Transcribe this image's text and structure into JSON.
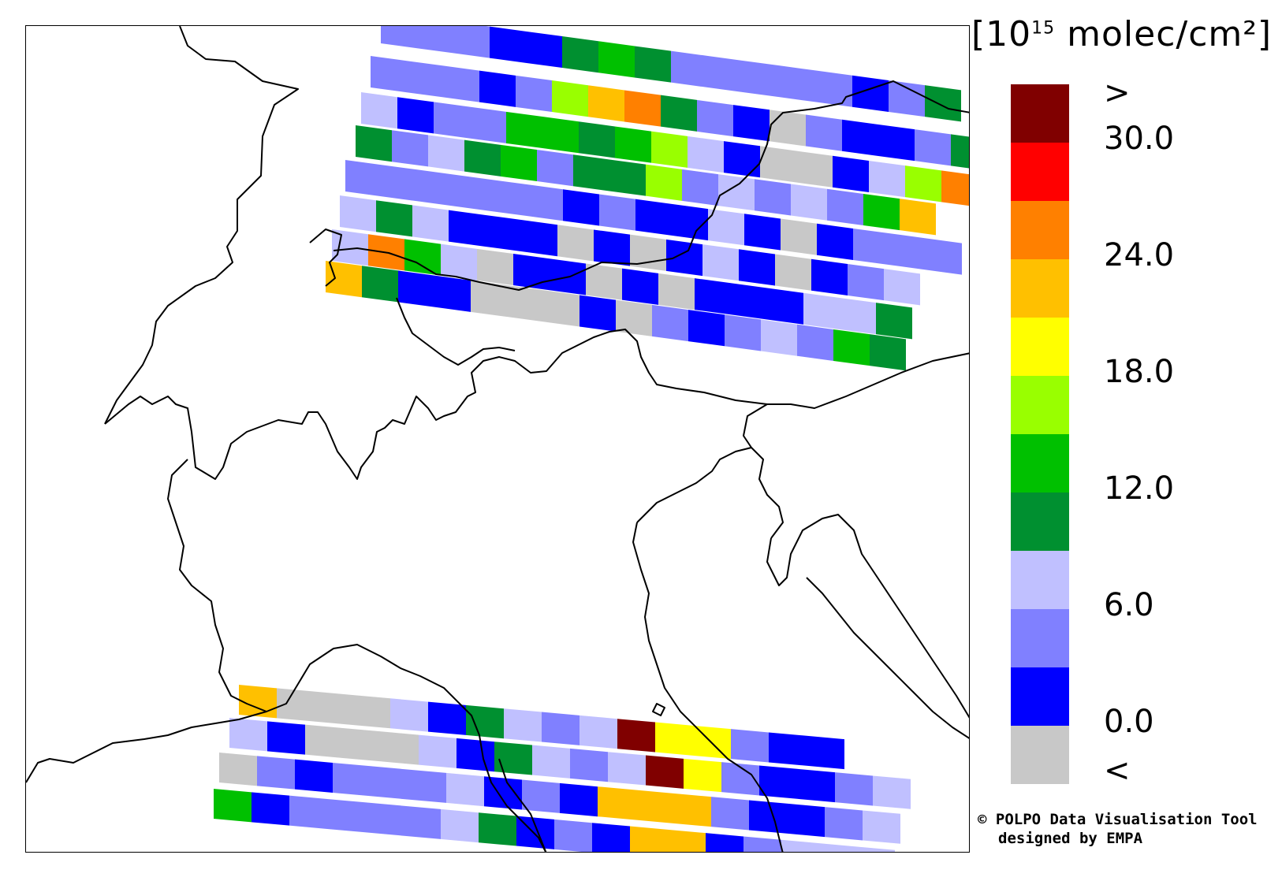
{
  "legend": {
    "unit_base": "[10",
    "unit_exp": "15",
    "unit_rest": " molec/cm²]",
    "bins": [
      {
        "color": "#800000",
        "label": ">"
      },
      {
        "color": "#ff0000",
        "label": "30.0"
      },
      {
        "color": "#ff8000",
        "label": ""
      },
      {
        "color": "#ffc000",
        "label": "24.0"
      },
      {
        "color": "#ffff00",
        "label": ""
      },
      {
        "color": "#99ff00",
        "label": "18.0"
      },
      {
        "color": "#00c000",
        "label": ""
      },
      {
        "color": "#009030",
        "label": "12.0"
      },
      {
        "color": "#c0c0ff",
        "label": ""
      },
      {
        "color": "#8080ff",
        "label": "6.0"
      },
      {
        "color": "#0000ff",
        "label": ""
      },
      {
        "color": "#c8c8c8",
        "label": "0.0"
      },
      {
        "color": "",
        "label": "<"
      }
    ]
  },
  "credit": {
    "line1": "© POLPO Data Visualisation Tool",
    "line2": "designed by EMPA"
  },
  "swaths": {
    "north": [
      [
        "lb",
        "lb",
        "lb",
        "b",
        "b",
        "dg",
        "g",
        "dg",
        "lb",
        "lb",
        "lb",
        "lb",
        "lb",
        "b",
        "lb",
        "dg"
      ],
      [
        "lb",
        "lb",
        "lb",
        "b",
        "lb",
        "yg",
        "o",
        "do",
        "dg",
        "lb",
        "b",
        "gr",
        "lb",
        "b",
        "b",
        "lb",
        "dg",
        "g"
      ],
      [
        "lv",
        "b",
        "lb",
        "lb",
        "g",
        "g",
        "dg",
        "g",
        "yg",
        "lv",
        "b",
        "gr",
        "gr",
        "b",
        "lv",
        "yg",
        "do"
      ],
      [
        "dg",
        "lb",
        "lv",
        "dg",
        "g",
        "lb",
        "dg",
        "dg",
        "yg",
        "lb",
        "lv",
        "lb",
        "lv",
        "lb",
        "g",
        "o"
      ],
      [
        "lb",
        "lb",
        "lb",
        "lb",
        "lb",
        "lb",
        "b",
        "lb",
        "b",
        "b",
        "lv",
        "b",
        "gr",
        "b",
        "lb",
        "lb",
        "lb"
      ],
      [
        "lv",
        "dg",
        "lv",
        "b",
        "b",
        "b",
        "gr",
        "b",
        "gr",
        "b",
        "lv",
        "b",
        "gr",
        "b",
        "lb",
        "lv"
      ],
      [
        "lv",
        "do",
        "g",
        "lv",
        "gr",
        "b",
        "b",
        "gr",
        "b",
        "gr",
        "b",
        "b",
        "b",
        "lv",
        "lv",
        "dg"
      ],
      [
        "o",
        "dg",
        "b",
        "b",
        "gr",
        "gr",
        "gr",
        "b",
        "gr",
        "lb",
        "b",
        "lb",
        "lv",
        "lb",
        "g",
        "dg"
      ],
      [
        "o",
        "dg",
        "b",
        "b",
        "gr",
        "gr",
        "gr",
        "b",
        "gr",
        "lb",
        "b",
        "lb",
        "lv",
        "lb",
        "g",
        "dg"
      ]
    ],
    "south": [
      [
        "o",
        "gr",
        "gr",
        "gr",
        "lv",
        "b",
        "dg",
        "lv",
        "lb",
        "lv",
        "dr",
        "y",
        "y",
        "lb",
        "b",
        "b"
      ],
      [
        "lv",
        "b",
        "gr",
        "gr",
        "gr",
        "lv",
        "b",
        "dg",
        "lv",
        "lb",
        "lv",
        "dr",
        "y",
        "lb",
        "b",
        "b",
        "lb",
        "lv"
      ],
      [
        "gr",
        "lb",
        "b",
        "lb",
        "lb",
        "lb",
        "lv",
        "b",
        "lb",
        "b",
        "o",
        "o",
        "o",
        "lb",
        "b",
        "b",
        "lb",
        "lv"
      ],
      [
        "g",
        "b",
        "lb",
        "lb",
        "lb",
        "lb",
        "lv",
        "dg",
        "b",
        "lb",
        "b",
        "o",
        "o",
        "b",
        "lb",
        "lv",
        "lv",
        "lv"
      ]
    ]
  }
}
